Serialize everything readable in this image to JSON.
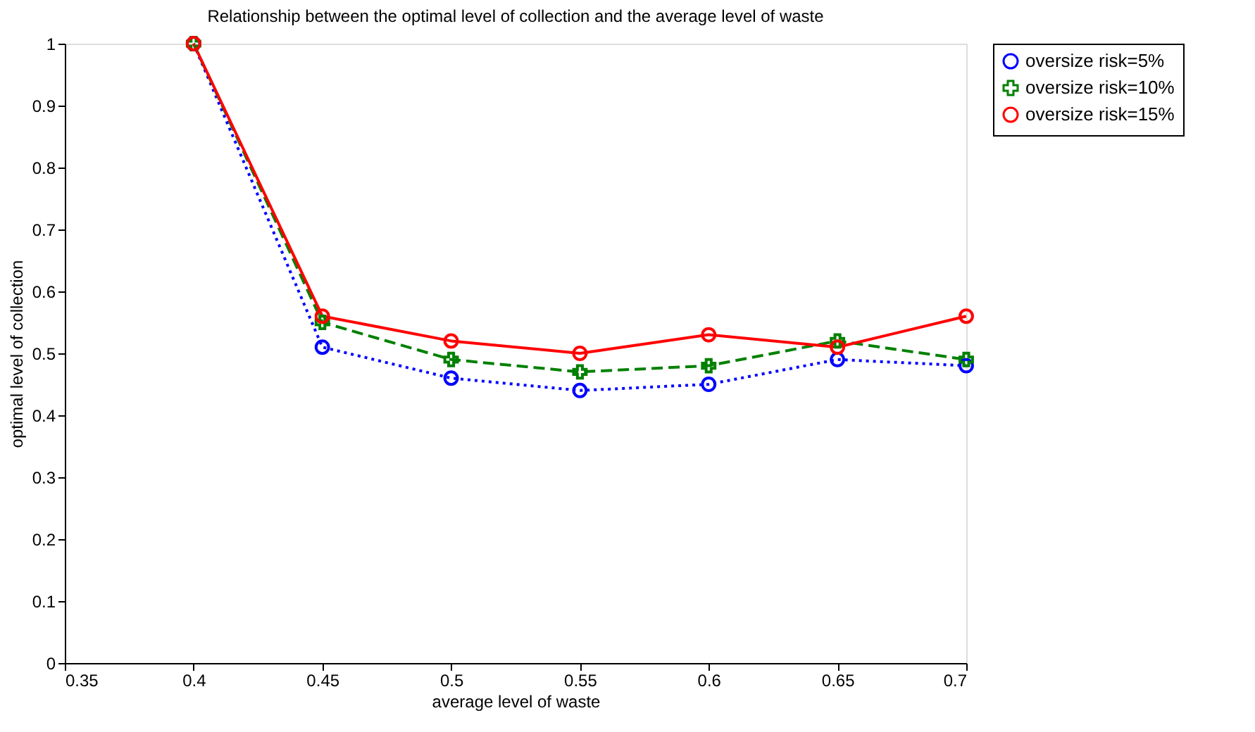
{
  "chart_data": {
    "type": "line",
    "title": "Relationship between the optimal level of collection and the average level of waste",
    "xlabel": "average level of waste",
    "ylabel": "optimal level of collection",
    "x": [
      0.4,
      0.45,
      0.5,
      0.55,
      0.6,
      0.65,
      0.7
    ],
    "series": [
      {
        "name": "oversize risk=5%",
        "color": "#0000ff",
        "values": [
          1,
          0.51,
          0.46,
          0.44,
          0.45,
          0.49,
          0.48
        ],
        "marker": "circle",
        "line_style": "dotted"
      },
      {
        "name": "oversize risk=10%",
        "color": "#008000",
        "values": [
          1,
          0.55,
          0.49,
          0.47,
          0.48,
          0.52,
          0.49
        ],
        "marker": "cross",
        "line_style": "dashed"
      },
      {
        "name": "oversize risk=15%",
        "color": "#ff0000",
        "values": [
          1,
          0.56,
          0.52,
          0.5,
          0.53,
          0.51,
          0.56
        ],
        "marker": "circle",
        "line_style": "solid"
      }
    ],
    "xlim": [
      0.35,
      0.7
    ],
    "xticks": [
      0.35,
      0.4,
      0.45,
      0.5,
      0.55,
      0.6,
      0.65,
      0.7
    ],
    "ylim": [
      0,
      1
    ],
    "yticks": [
      0,
      0.1,
      0.2,
      0.3,
      0.4,
      0.5,
      0.6,
      0.7,
      0.8,
      0.9,
      1
    ],
    "grid": false,
    "legend": "top right"
  }
}
